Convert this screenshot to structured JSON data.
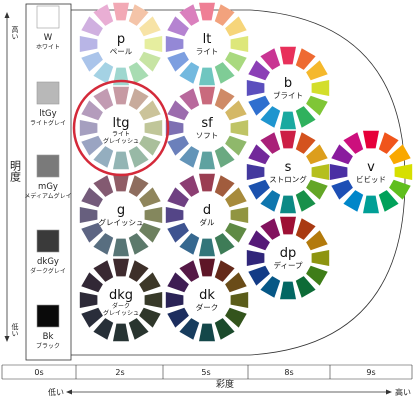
{
  "axes": {
    "y": {
      "label": "明度",
      "high": "高い",
      "low": "低い"
    },
    "x": {
      "label": "彩度",
      "low": "低い",
      "high": "高い",
      "ticks": [
        "0s",
        "2s",
        "5s",
        "8s",
        "9s"
      ]
    }
  },
  "gray_scale": [
    {
      "code": "W",
      "name": "ホワイト",
      "color": "#ffffff"
    },
    {
      "code": "ltGy",
      "name": "ライトグレイ",
      "color": "#b8b8b8"
    },
    {
      "code": "mGy",
      "name": "メディアムグレイ",
      "color": "#7a7a7a"
    },
    {
      "code": "dkGy",
      "name": "ダークグレイ",
      "color": "#3a3a3a"
    },
    {
      "code": "Bk",
      "name": "ブラック",
      "color": "#0a0a0a"
    }
  ],
  "tones": [
    {
      "code": "p",
      "name": "ペール",
      "chroma": "2s",
      "tier": 0,
      "colors": [
        "#f2a9b5",
        "#f4c4a8",
        "#f7e3a6",
        "#e6ee9f",
        "#c7e4a3",
        "#a8dcb2",
        "#9fd7cf",
        "#a4d2e4",
        "#aac4ea",
        "#b8b5e6",
        "#d0b0e0",
        "#e9aed4"
      ]
    },
    {
      "code": "lt",
      "name": "ライト",
      "chroma": "5s",
      "tier": 0,
      "colors": [
        "#ef7f95",
        "#f2a27d",
        "#f6d57a",
        "#dde77a",
        "#a9d97f",
        "#7fcc96",
        "#6fc6c0",
        "#73b9df",
        "#7d9fe0",
        "#9488d6",
        "#b583d1",
        "#da80bd"
      ]
    },
    {
      "code": "ltg",
      "name": "ライトグレイッシュ",
      "chroma": "2s",
      "tier": 1,
      "colors": [
        "#c79aa3",
        "#c8ab9c",
        "#cbc39a",
        "#c0c699",
        "#a9bf9b",
        "#98b9a6",
        "#93b5b4",
        "#94aebf",
        "#9aa4c2",
        "#a59fbf",
        "#b49cbc",
        "#c29bb2"
      ]
    },
    {
      "code": "b",
      "name": "ブライト",
      "chroma": "8s",
      "tier": 0,
      "colors": [
        "#e8305a",
        "#ee6a32",
        "#f5b82c",
        "#d3de2a",
        "#7fc636",
        "#2fb15d",
        "#1aa9a0",
        "#1f95cf",
        "#2f6fcf",
        "#5b4fbd",
        "#8c3fb6",
        "#c93593"
      ]
    },
    {
      "code": "sf",
      "name": "ソフト",
      "chroma": "5s",
      "tier": 1,
      "colors": [
        "#c96a7d",
        "#cf8a66",
        "#d4b866",
        "#bfc466",
        "#8fb86b",
        "#6aa981",
        "#5fa2a0",
        "#6394b8",
        "#6b80bb",
        "#7d70b2",
        "#9c6cad",
        "#b8699c"
      ]
    },
    {
      "code": "s",
      "name": "ストロング",
      "chroma": "8s",
      "tier": 1,
      "colors": [
        "#cc1f45",
        "#d4521e",
        "#dc9e1c",
        "#b5bf1d",
        "#63a626",
        "#18904a",
        "#0c8a85",
        "#0f76ae",
        "#1c52ae",
        "#43389e",
        "#72289a",
        "#a92078"
      ]
    },
    {
      "code": "v",
      "name": "ビビッド",
      "chroma": "9s",
      "tier": 1,
      "colors": [
        "#e60039",
        "#f0551b",
        "#f9a800",
        "#d6df00",
        "#5fbe1e",
        "#00a15a",
        "#009f96",
        "#0086c9",
        "#1d4fb5",
        "#4a2fa3",
        "#8a1c9e",
        "#cc0f7d"
      ]
    },
    {
      "code": "g",
      "name": "グレイッシュ",
      "chroma": "2s",
      "tier": 2,
      "colors": [
        "#8f5d66",
        "#8e6d5e",
        "#8f855c",
        "#84875d",
        "#6d805f",
        "#5c796b",
        "#577575",
        "#586e80",
        "#5d6583",
        "#675f7e",
        "#745b7b",
        "#835a71"
      ]
    },
    {
      "code": "d",
      "name": "ダル",
      "chroma": "5s",
      "tier": 2,
      "colors": [
        "#9a3e52",
        "#a15c3d",
        "#a78b3c",
        "#919541",
        "#5f8a44",
        "#3e7c57",
        "#33767a",
        "#36688f",
        "#3e5390",
        "#544587",
        "#6f4082",
        "#8c3e72"
      ]
    },
    {
      "code": "dp",
      "name": "ディープ",
      "chroma": "8s",
      "tier": 2,
      "colors": [
        "#9e1034",
        "#a93a12",
        "#b37a0c",
        "#8d9410",
        "#3e7d18",
        "#0d6b37",
        "#036763",
        "#065786",
        "#133b86",
        "#30267a",
        "#561a78",
        "#82125d"
      ]
    },
    {
      "code": "dkg",
      "name": "ダークグレイッシュ",
      "chroma": "2s",
      "tier": 3,
      "colors": [
        "#3e2a2e",
        "#3d2f29",
        "#3d3828",
        "#383a29",
        "#2f372a",
        "#29352f",
        "#263333",
        "#273038",
        "#292d3a",
        "#2d2a38",
        "#322836",
        "#392831"
      ]
    },
    {
      "code": "dk",
      "name": "ダーク",
      "chroma": "5s",
      "tier": 3,
      "colors": [
        "#5e1627",
        "#64291a",
        "#6a4c18",
        "#5a5c1a",
        "#33541c",
        "#1b4a2c",
        "#144749",
        "#173c5d",
        "#1c2d5e",
        "#2a2356",
        "#3e1d53",
        "#551946"
      ]
    }
  ],
  "highlight": {
    "tone": "ltg",
    "color": "#d42a3a"
  }
}
